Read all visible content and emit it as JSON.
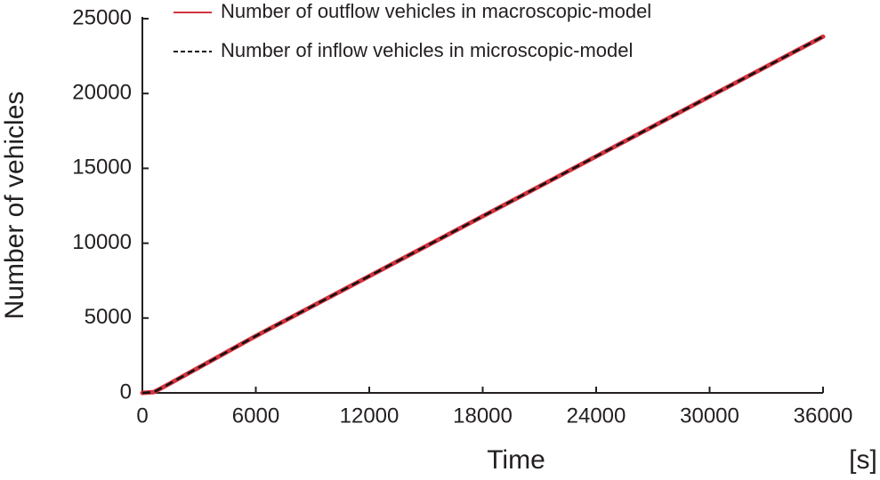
{
  "chart_data": {
    "type": "line",
    "x_label": "Time",
    "x_unit": "[s]",
    "y_label": "Number of vehicles",
    "x": [
      0,
      600,
      1200,
      6000,
      12000,
      18000,
      24000,
      30000,
      36000
    ],
    "series": [
      {
        "name": "Number of outflow vehicles in macroscopic-model",
        "color": "#d2343f",
        "style": "solid",
        "values": [
          0,
          50,
          450,
          3800,
          7800,
          11800,
          15800,
          19800,
          23800
        ]
      },
      {
        "name": "Number of inflow vehicles in microscopic-model",
        "color": "#111111",
        "style": "dashed",
        "values": [
          0,
          50,
          450,
          3800,
          7800,
          11800,
          15800,
          19800,
          23800
        ]
      }
    ],
    "xlim": [
      0,
      36000
    ],
    "xticks": [
      0,
      6000,
      12000,
      18000,
      24000,
      30000,
      36000
    ],
    "ylim": [
      0,
      25000
    ],
    "yticks": [
      0,
      5000,
      10000,
      15000,
      20000,
      25000
    ],
    "grid": false,
    "legend": "upper left"
  }
}
